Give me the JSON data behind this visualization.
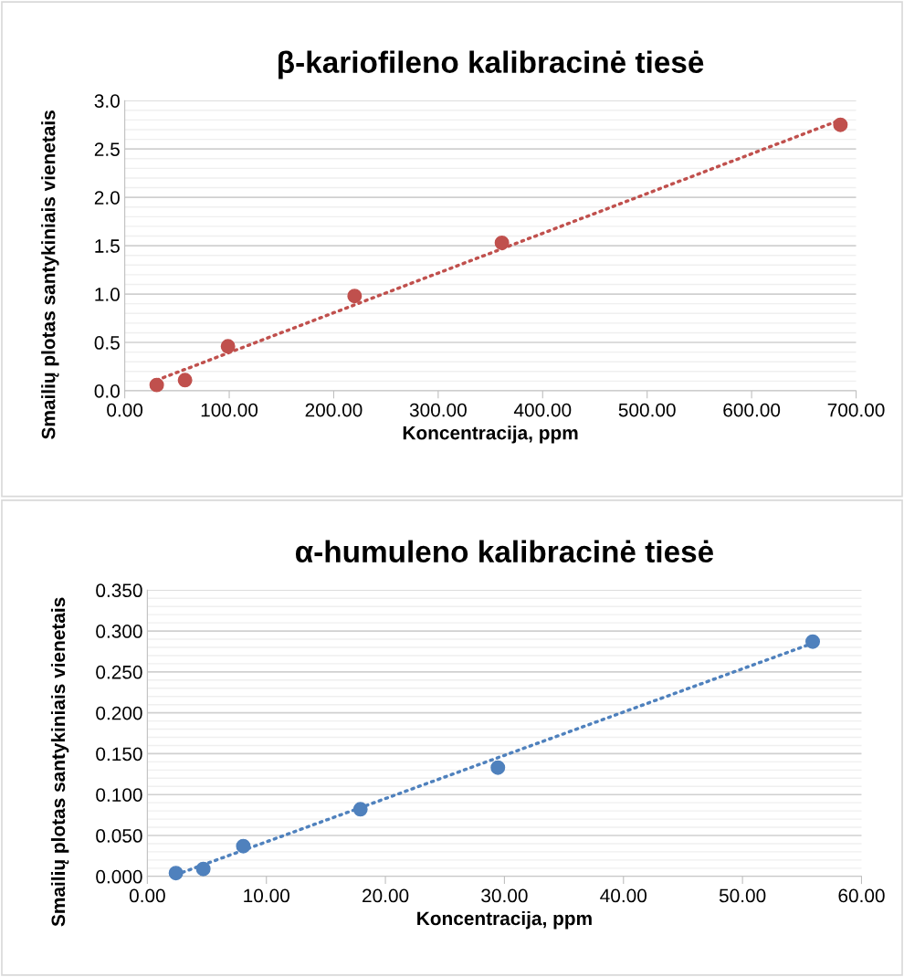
{
  "chart_data": [
    {
      "type": "scatter",
      "title": "β-kariofileno kalibracinė tiesė",
      "xlabel": "Koncentracija, ppm",
      "ylabel": "Smailių plotas santykiniais vienetais",
      "marker": "circle",
      "grid": "y",
      "x": [
        30.6,
        57.7,
        98.8,
        220,
        361,
        685
      ],
      "series": [
        {
          "color": "#c0504d",
          "values": [
            0.06,
            0.11,
            0.46,
            0.98,
            1.53,
            2.75
          ]
        },
        {
          "type": "line",
          "line_style": "dotted",
          "marker": "none",
          "color": "#c0504d",
          "x": [
            30.6,
            685
          ],
          "values": [
            0.11,
            2.8
          ]
        }
      ],
      "xlim": [
        0,
        700
      ],
      "xticks": [
        {
          "value": 0,
          "label": "0.00"
        },
        {
          "value": 100,
          "label": "100.00"
        },
        {
          "value": 200,
          "label": "200.00"
        },
        {
          "value": 300,
          "label": "300.00"
        },
        {
          "value": 400,
          "label": "400.00"
        },
        {
          "value": 500,
          "label": "500.00"
        },
        {
          "value": 600,
          "label": "600.00"
        },
        {
          "value": 700,
          "label": "700.00"
        }
      ],
      "ylim": [
        0,
        3
      ],
      "yticks": [
        {
          "value": 0,
          "label": "0.0"
        },
        {
          "value": 0.5,
          "label": "0.5"
        },
        {
          "value": 1,
          "label": "1.0"
        },
        {
          "value": 1.5,
          "label": "1.5"
        },
        {
          "value": 2,
          "label": "2.0"
        },
        {
          "value": 2.5,
          "label": "2.5"
        },
        {
          "value": 3,
          "label": "3.0"
        }
      ]
    },
    {
      "type": "scatter",
      "title": "α-humuleno kalibracinė tiesė",
      "xlabel": "Koncentracija, ppm",
      "ylabel": "Smailių plotas santykiniais vienetais",
      "marker": "circle",
      "grid": "y",
      "x": [
        2.4,
        4.7,
        8.06,
        17.9,
        29.45,
        55.9
      ],
      "series": [
        {
          "color": "#4f81bd",
          "values": [
            0.004,
            0.009,
            0.037,
            0.082,
            0.133,
            0.287
          ]
        },
        {
          "type": "line",
          "line_style": "dotted",
          "marker": "none",
          "color": "#4f81bd",
          "x": [
            2.4,
            55.9
          ],
          "values": [
            0.002,
            0.285
          ]
        }
      ],
      "xlim": [
        0,
        60
      ],
      "xticks": [
        {
          "value": 0,
          "label": "0.00"
        },
        {
          "value": 10,
          "label": "10.00"
        },
        {
          "value": 20,
          "label": "20.00"
        },
        {
          "value": 30,
          "label": "30.00"
        },
        {
          "value": 40,
          "label": "40.00"
        },
        {
          "value": 50,
          "label": "50.00"
        },
        {
          "value": 60,
          "label": "60.00"
        }
      ],
      "ylim": [
        0,
        0.35
      ],
      "yticks": [
        {
          "value": 0,
          "label": "0.000"
        },
        {
          "value": 0.05,
          "label": "0.050"
        },
        {
          "value": 0.1,
          "label": "0.100"
        },
        {
          "value": 0.15,
          "label": "0.150"
        },
        {
          "value": 0.2,
          "label": "0.200"
        },
        {
          "value": 0.25,
          "label": "0.250"
        },
        {
          "value": 0.3,
          "label": "0.300"
        },
        {
          "value": 0.35,
          "label": "0.350"
        }
      ]
    }
  ]
}
